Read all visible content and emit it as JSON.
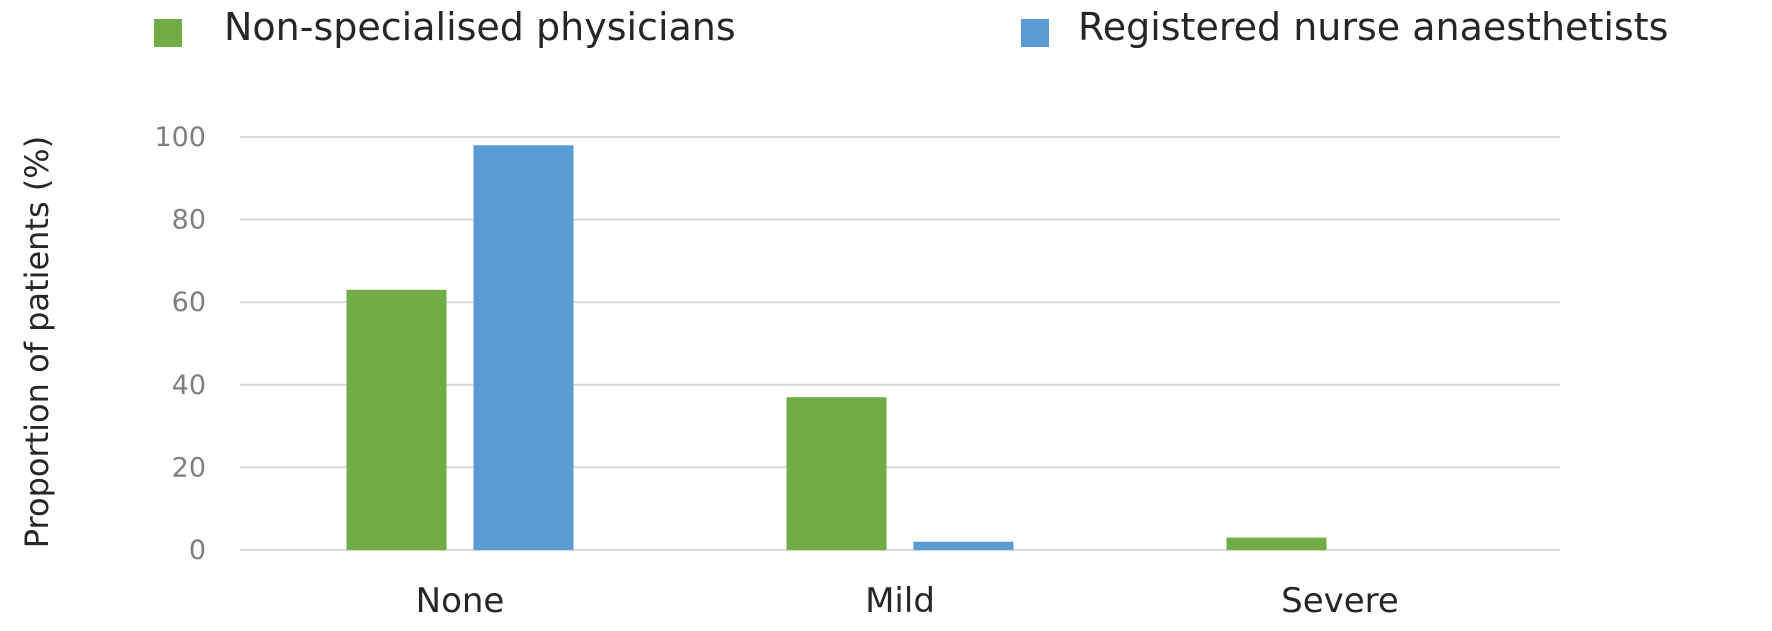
{
  "chart_data": {
    "type": "bar",
    "categories": [
      "None",
      "Mild",
      "Severe"
    ],
    "series": [
      {
        "name": "Non-specialised physicians",
        "color": "#70ad47",
        "values": [
          63,
          37,
          3
        ]
      },
      {
        "name": "Registered nurse anaesthetists",
        "color": "#5b9bd5",
        "values": [
          98,
          2,
          0
        ]
      }
    ],
    "ylabel": "Proportion of patients (%)",
    "xlabel": "",
    "ylim": [
      0,
      100
    ],
    "yticks": [
      "0",
      "20",
      "40",
      "60",
      "80",
      "100"
    ],
    "grid": true,
    "legend_position": "top"
  }
}
